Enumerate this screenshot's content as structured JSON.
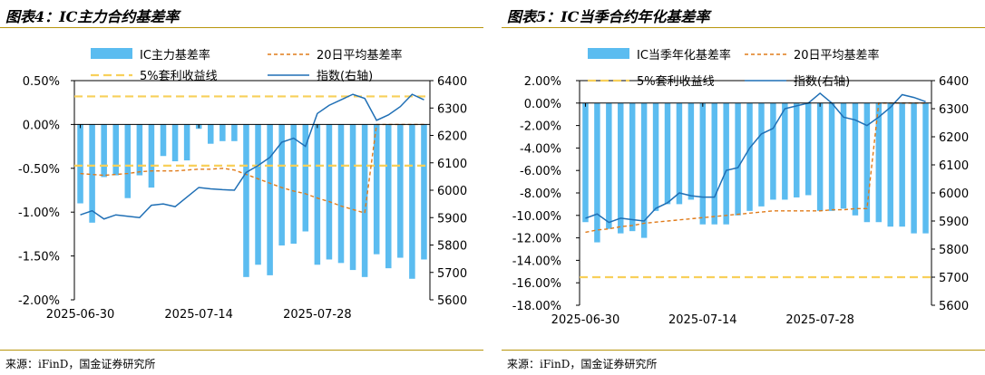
{
  "left": {
    "title": "图表4：IC主力合约基差率",
    "source": "来源：iFinD，国金证券研究所"
  },
  "right": {
    "title": "图表5：IC当季合约年化基差率",
    "source": "来源：iFinD，国金证券研究所"
  },
  "colors": {
    "bar": "#5bbcf0",
    "avg": "#e07b1a",
    "threshold": "#f8d05a",
    "index": "#1f6fb5"
  },
  "chart_data": [
    {
      "type": "bar",
      "title": "IC主力合约基差率",
      "x": [
        "2025-06-30",
        "2025-07-01",
        "2025-07-02",
        "2025-07-03",
        "2025-07-04",
        "2025-07-07",
        "2025-07-08",
        "2025-07-09",
        "2025-07-10",
        "2025-07-11",
        "2025-07-14",
        "2025-07-15",
        "2025-07-16",
        "2025-07-17",
        "2025-07-18",
        "2025-07-21",
        "2025-07-22",
        "2025-07-23",
        "2025-07-24",
        "2025-07-25",
        "2025-07-28",
        "2025-07-29",
        "2025-07-30",
        "2025-07-31",
        "2025-08-01",
        "2025-08-04",
        "2025-08-05",
        "2025-08-06",
        "2025-08-07",
        "2025-08-08"
      ],
      "xticks": [
        "2025-06-30",
        "2025-07-14",
        "2025-07-28"
      ],
      "ylim": [
        -2.0,
        0.5
      ],
      "yticks": [
        "0.50%",
        "0.00%",
        "-0.50%",
        "-1.00%",
        "-1.50%",
        "-2.00%"
      ],
      "y2lim": [
        5600,
        6400
      ],
      "y2ticks": [
        "6400",
        "6300",
        "6200",
        "6100",
        "6000",
        "5900",
        "5800",
        "5700",
        "5600"
      ],
      "legend": [
        "IC主力基差率",
        "20日平均基差率",
        "5%套利收益线",
        "指数(右轴)"
      ],
      "series": [
        {
          "name": "IC主力基差率",
          "kind": "bar",
          "axis": "left",
          "values": [
            -0.9,
            -1.12,
            -0.6,
            -0.58,
            -0.84,
            -0.58,
            -0.72,
            -0.36,
            -0.42,
            -0.41,
            -0.05,
            -0.22,
            -0.19,
            -0.19,
            -1.74,
            -1.6,
            -1.72,
            -1.38,
            -1.36,
            -1.22,
            -1.6,
            -1.54,
            -1.58,
            -1.66,
            -1.74,
            -1.48,
            -1.64,
            -1.52,
            -1.76,
            -1.54
          ]
        },
        {
          "name": "20日平均基差率",
          "kind": "line",
          "axis": "left",
          "values": [
            -0.56,
            -0.57,
            -0.58,
            -0.57,
            -0.56,
            -0.54,
            -0.53,
            -0.53,
            -0.53,
            -0.52,
            -0.51,
            -0.51,
            -0.5,
            -0.52,
            -0.57,
            -0.62,
            -0.67,
            -0.72,
            -0.76,
            -0.79,
            -0.84,
            -0.88,
            -0.93,
            -0.97,
            -1.01,
            0.0,
            0.0,
            0.0,
            0.0,
            0.0
          ]
        },
        {
          "name": "5%套利收益线",
          "kind": "hline",
          "axis": "left",
          "y_hlines": [
            0.32,
            -0.47
          ]
        },
        {
          "name": "指数(右轴)",
          "kind": "line",
          "axis": "right",
          "values": [
            5910,
            5925,
            5895,
            5910,
            5905,
            5900,
            5945,
            5950,
            5940,
            5975,
            6010,
            6005,
            6002,
            6000,
            6065,
            6090,
            6120,
            6175,
            6190,
            6160,
            6280,
            6310,
            6330,
            6350,
            6335,
            6255,
            6275,
            6305,
            6350,
            6330
          ]
        }
      ]
    },
    {
      "type": "bar",
      "title": "IC当季合约年化基差率",
      "x": [
        "2025-06-30",
        "2025-07-01",
        "2025-07-02",
        "2025-07-03",
        "2025-07-04",
        "2025-07-07",
        "2025-07-08",
        "2025-07-09",
        "2025-07-10",
        "2025-07-11",
        "2025-07-14",
        "2025-07-15",
        "2025-07-16",
        "2025-07-17",
        "2025-07-18",
        "2025-07-21",
        "2025-07-22",
        "2025-07-23",
        "2025-07-24",
        "2025-07-25",
        "2025-07-28",
        "2025-07-29",
        "2025-07-30",
        "2025-07-31",
        "2025-08-01",
        "2025-08-04",
        "2025-08-05",
        "2025-08-06",
        "2025-08-07",
        "2025-08-08"
      ],
      "xticks": [
        "2025-06-30",
        "2025-07-14",
        "2025-07-28"
      ],
      "ylim": [
        -18.0,
        2.0
      ],
      "yticks": [
        "2.00%",
        "0.00%",
        "-2.00%",
        "-4.00%",
        "-6.00%",
        "-8.00%",
        "-10.00%",
        "-12.00%",
        "-14.00%",
        "-16.00%",
        "-18.00%"
      ],
      "y2lim": [
        5600,
        6400
      ],
      "y2ticks": [
        "6400",
        "6300",
        "6200",
        "6100",
        "6000",
        "5900",
        "5800",
        "5700",
        "5600"
      ],
      "legend": [
        "IC当季年化基差率",
        "20日平均基差率",
        "5%套利收益线",
        "指数(右轴)"
      ],
      "series": [
        {
          "name": "IC当季年化基差率",
          "kind": "bar",
          "axis": "left",
          "values": [
            -10.6,
            -12.4,
            -11.2,
            -11.6,
            -11.4,
            -12.0,
            -9.6,
            -9.0,
            -9.0,
            -8.6,
            -10.8,
            -10.8,
            -10.8,
            -10.0,
            -9.6,
            -9.2,
            -8.6,
            -8.6,
            -8.4,
            -8.2,
            -9.6,
            -9.6,
            -9.4,
            -10.0,
            -10.6,
            -10.6,
            -11.0,
            -11.0,
            -11.6,
            -11.6
          ]
        },
        {
          "name": "20日平均基差率",
          "kind": "line",
          "axis": "left",
          "values": [
            -11.5,
            -11.3,
            -11.2,
            -11.0,
            -10.9,
            -10.7,
            -10.6,
            -10.5,
            -10.4,
            -10.3,
            -10.2,
            -10.1,
            -10.0,
            -9.9,
            -9.8,
            -9.7,
            -9.6,
            -9.6,
            -9.6,
            -9.6,
            -9.6,
            -9.5,
            -9.5,
            -9.4,
            -9.4,
            0.0,
            0.0,
            0.0,
            0.0,
            0.0
          ]
        },
        {
          "name": "5%套利收益线",
          "kind": "hline",
          "axis": "left",
          "y_hlines": [
            -15.5
          ]
        },
        {
          "name": "指数(右轴)",
          "kind": "line",
          "axis": "right",
          "values": [
            5910,
            5925,
            5895,
            5910,
            5905,
            5900,
            5945,
            5965,
            6000,
            5990,
            5985,
            5985,
            6080,
            6090,
            6160,
            6210,
            6230,
            6300,
            6310,
            6320,
            6355,
            6320,
            6270,
            6260,
            6240,
            6270,
            6305,
            6350,
            6340,
            6325
          ]
        }
      ]
    }
  ]
}
